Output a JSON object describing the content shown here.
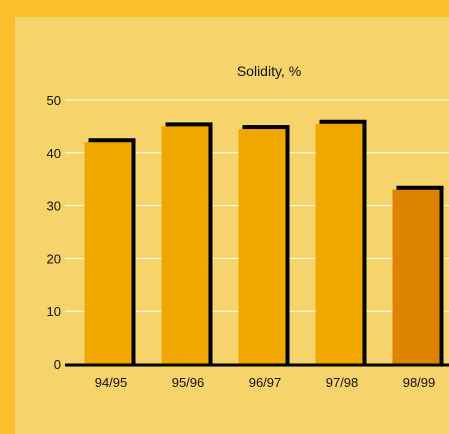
{
  "colors": {
    "outer_background": "#FBBF2E",
    "panel_background": "#F7D36B",
    "bar_fill": "#F0A800",
    "bar_highlight_fill": "#DD8300",
    "bar_shadow": "#000000",
    "gridline": "#FFFFFF",
    "axis": "#000000"
  },
  "chart_data": {
    "type": "bar",
    "title": "Solidity, %",
    "xlabel": "",
    "ylabel": "",
    "categories": [
      "94/95",
      "95/96",
      "96/97",
      "97/98",
      "98/99"
    ],
    "values": [
      42,
      45,
      44.5,
      45.5,
      33
    ],
    "highlight_index": 4,
    "ylim": [
      0,
      50
    ],
    "yticks": [
      0,
      10,
      20,
      30,
      40,
      50
    ],
    "grid": true,
    "legend": "none"
  }
}
